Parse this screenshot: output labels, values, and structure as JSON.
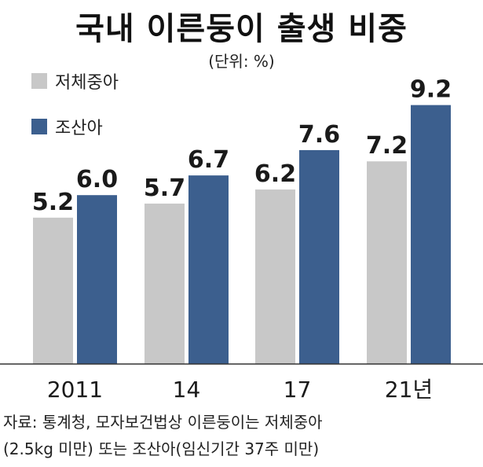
{
  "title": "국내 이른둥이 출생 비중",
  "unit": "(단위: %)",
  "source": {
    "line1": "자료: 통계청, 모자보건법상 이른둥이는 저체중아",
    "line2": "(2.5kg 미만) 또는 조산아(임신기간 37주 미만)"
  },
  "chart_data": {
    "type": "bar",
    "categories": [
      "2011",
      "14",
      "17",
      "21년"
    ],
    "series": [
      {
        "name": "저체중아",
        "values": [
          5.2,
          5.7,
          6.2,
          7.2
        ],
        "color": "#c8c8c8"
      },
      {
        "name": "조산아",
        "values": [
          6.0,
          6.7,
          7.6,
          9.2
        ],
        "color": "#3c5f8e"
      }
    ],
    "ylim": [
      0,
      10
    ],
    "grid": false,
    "legend": "top-left"
  }
}
